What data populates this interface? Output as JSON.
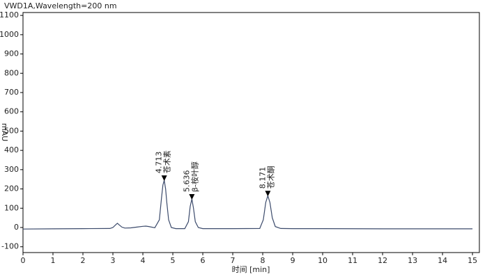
{
  "chart_data": {
    "type": "line",
    "title": "VWD1A,Wavelength=200 nm",
    "ylabel": "mAU",
    "xlabel": "时间 [min]",
    "x": [
      0,
      1,
      2,
      2.9,
      3.0,
      3.1,
      3.15,
      3.2,
      3.3,
      3.4,
      3.6,
      3.8,
      4.0,
      4.1,
      4.2,
      4.4,
      4.55,
      4.62,
      4.67,
      4.713,
      4.76,
      4.8,
      4.86,
      4.95,
      5.1,
      5.4,
      5.52,
      5.58,
      5.636,
      5.69,
      5.75,
      5.85,
      6.0,
      7,
      7.9,
      8.02,
      8.1,
      8.171,
      8.24,
      8.32,
      8.42,
      8.6,
      9,
      10,
      12,
      15
    ],
    "series": [
      {
        "color": "#3b4a6b",
        "values": [
          -8,
          -7,
          -6,
          -5,
          0,
          15,
          22,
          15,
          2,
          -3,
          -2,
          2,
          6,
          7,
          5,
          -1,
          40,
          150,
          220,
          245,
          200,
          130,
          40,
          0,
          -6,
          -6,
          30,
          110,
          148,
          100,
          30,
          0,
          -6,
          -6,
          -5,
          40,
          130,
          165,
          130,
          50,
          5,
          -5,
          -6,
          -6,
          -7,
          -7
        ]
      }
    ],
    "annotations": [
      {
        "x": 4.713,
        "y": 245,
        "name": "苍术素"
      },
      {
        "x": 5.636,
        "y": 148,
        "name": "β-桉叶醇"
      },
      {
        "x": 8.171,
        "y": 165,
        "name": "苍术酮"
      }
    ],
    "xlim": [
      0,
      15.23
    ],
    "ylim": [
      -130,
      1115
    ],
    "xticks": [
      0,
      1,
      2,
      3,
      4,
      5,
      6,
      7,
      8,
      9,
      10,
      11,
      12,
      13,
      14,
      15
    ],
    "yticks": [
      -100,
      0,
      100,
      200,
      300,
      400,
      500,
      600,
      700,
      800,
      900,
      1000,
      1100
    ]
  }
}
